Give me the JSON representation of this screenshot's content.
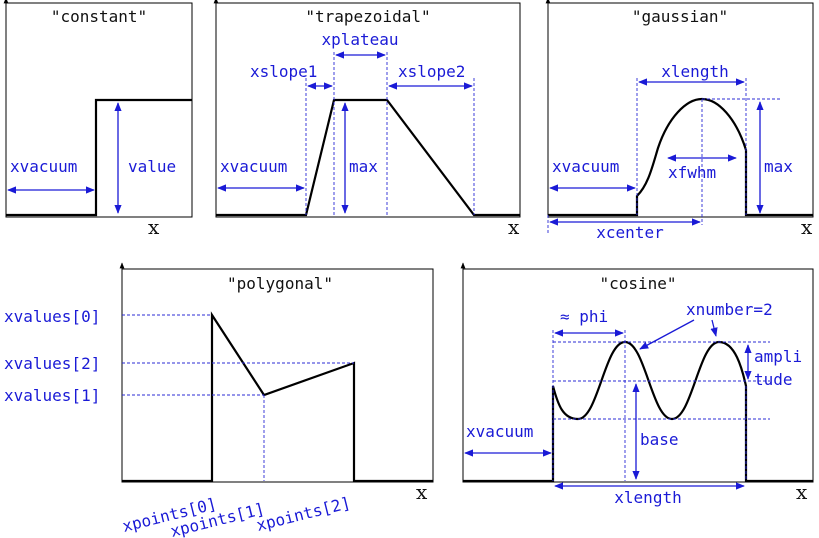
{
  "panels": {
    "constant": {
      "title": "\"constant\"",
      "labels": {
        "xvacuum": "xvacuum",
        "value": "value"
      },
      "axis": "x"
    },
    "trapezoidal": {
      "title": "\"trapezoidal\"",
      "labels": {
        "xplateau": "xplateau",
        "xslope1": "xslope1",
        "xslope2": "xslope2",
        "xvacuum": "xvacuum",
        "max": "max"
      },
      "axis": "x"
    },
    "gaussian": {
      "title": "\"gaussian\"",
      "labels": {
        "xlength": "xlength",
        "xvacuum": "xvacuum",
        "xfwhm": "xfwhm",
        "max": "max",
        "xcenter": "xcenter"
      },
      "axis": "x"
    },
    "polygonal": {
      "title": "\"polygonal\"",
      "labels": {
        "xvalues0": "xvalues[0]",
        "xvalues2": "xvalues[2]",
        "xvalues1": "xvalues[1]",
        "xpoints0": "xpoints[0]",
        "xpoints1": "xpoints[1]",
        "xpoints2": "xpoints[2]"
      },
      "axis": "x"
    },
    "cosine": {
      "title": "\"cosine\"",
      "labels": {
        "phi": "≈ phi",
        "xnumber": "xnumber=2",
        "ampli": "ampli",
        "tude": "tude",
        "xvacuum": "xvacuum",
        "base": "base",
        "xlength": "xlength"
      },
      "axis": "x"
    }
  },
  "colors": {
    "annotation": "#1a1ad6",
    "curve": "#000000"
  }
}
